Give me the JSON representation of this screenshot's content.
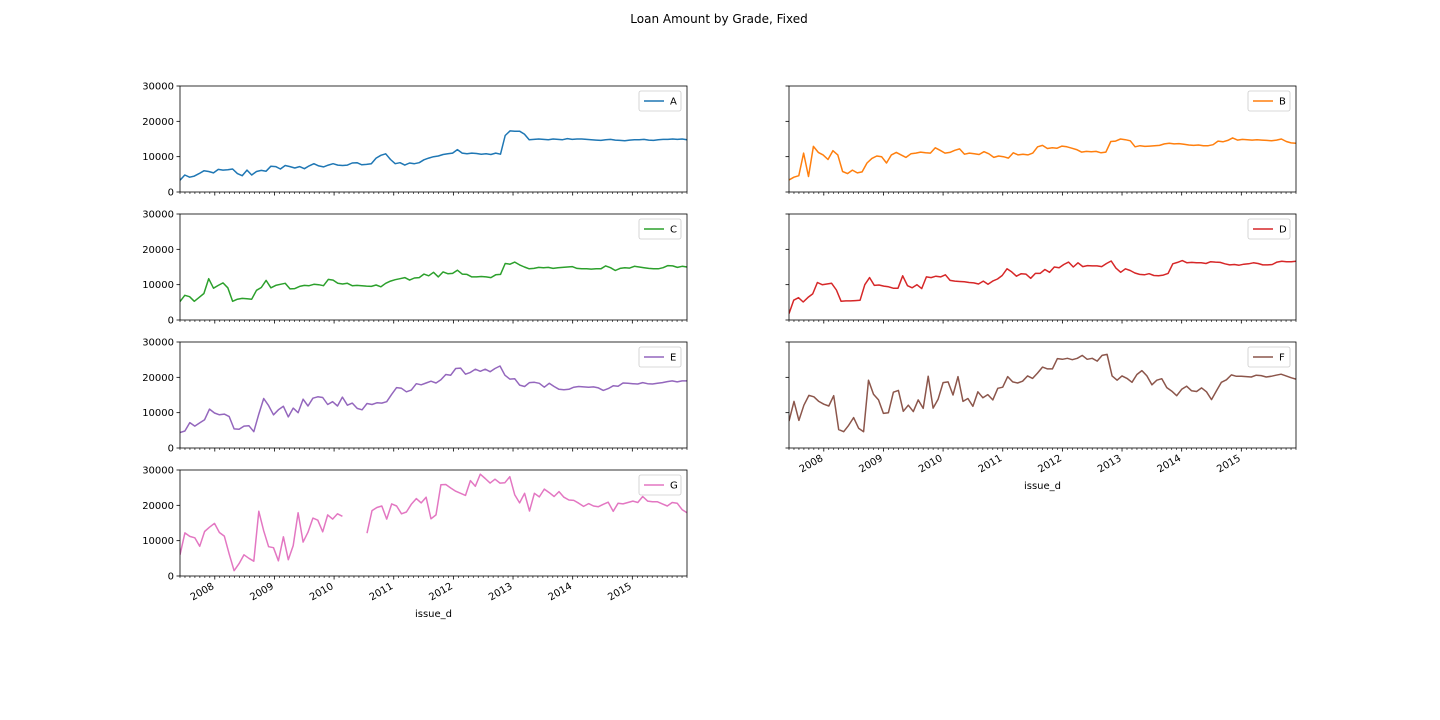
{
  "chart_data": {
    "type": "line",
    "title": "Loan Amount by Grade, Fixed",
    "xlabel": "issue_d",
    "year_ticks": [
      "2008",
      "2009",
      "2010",
      "2011",
      "2012",
      "2013",
      "2014",
      "2015"
    ],
    "y_ticks": [
      "0",
      "10000",
      "20000",
      "30000"
    ],
    "ylim": [
      0,
      30000
    ],
    "x_start": "2007-06",
    "x_end": "2015-12",
    "sharey": true,
    "legend": "top-right",
    "grid": false,
    "series": [
      {
        "name": "A",
        "color": "#1f77b4",
        "values": [
          3300,
          4800,
          4200,
          4500,
          5200,
          6000,
          5800,
          5400,
          6400,
          6200,
          6300,
          6500,
          5200,
          4600,
          6200,
          4800,
          5800,
          6100,
          5900,
          7300,
          7200,
          6500,
          7500,
          7200,
          6800,
          7200,
          6600,
          7400,
          8000,
          7400,
          7100,
          7600,
          8000,
          7600,
          7500,
          7600,
          8200,
          8300,
          7700,
          7800,
          8000,
          9600,
          10400,
          10800,
          9200,
          8000,
          8300,
          7600,
          8200,
          8000,
          8300,
          9100,
          9600,
          10000,
          10200,
          10600,
          10800,
          11000,
          12000,
          11000,
          10800,
          11000,
          10900,
          10700,
          10800,
          10600,
          11000,
          10700,
          16000,
          17300,
          17200,
          17200,
          16400,
          14800,
          14900,
          15000,
          14900,
          14800,
          15000,
          14900,
          14800,
          15100,
          14900,
          15000,
          15000,
          14900,
          14800,
          14700,
          14600,
          14800,
          14900,
          14700,
          14600,
          14500,
          14700,
          14800,
          14800,
          14900,
          14700,
          14600,
          14800,
          14900,
          14900,
          15000,
          14900,
          15000,
          14800
        ]
      },
      {
        "name": "B",
        "color": "#ff7f0e",
        "values": [
          3400,
          4200,
          4600,
          11000,
          4400,
          12900,
          11200,
          10500,
          9200,
          11700,
          10500,
          5800,
          5200,
          6200,
          5400,
          5700,
          8200,
          9500,
          10200,
          10000,
          8200,
          10500,
          11200,
          10500,
          9800,
          10800,
          11000,
          11300,
          11100,
          11000,
          12500,
          11800,
          11000,
          11200,
          11800,
          12200,
          10700,
          11000,
          10800,
          10600,
          11400,
          10800,
          9800,
          10200,
          10000,
          9600,
          11100,
          10500,
          10700,
          10500,
          11000,
          12800,
          13200,
          12300,
          12500,
          12400,
          13000,
          12800,
          12400,
          12000,
          11300,
          11500,
          11400,
          11500,
          11100,
          11300,
          14300,
          14400,
          15000,
          14800,
          14500,
          12800,
          13100,
          12900,
          13000,
          13100,
          13200,
          13600,
          13800,
          13600,
          13700,
          13500,
          13300,
          13200,
          13300,
          13100,
          13100,
          13400,
          14400,
          14200,
          14600,
          15300,
          14700,
          14900,
          14800,
          14700,
          14800,
          14700,
          14600,
          14500,
          14700,
          15000,
          14300,
          13900,
          13800
        ]
      },
      {
        "name": "C",
        "color": "#2ca02c",
        "values": [
          5200,
          7000,
          6600,
          5300,
          6400,
          7500,
          11700,
          9000,
          9800,
          10500,
          9100,
          5300,
          5900,
          6100,
          6000,
          5900,
          8400,
          9200,
          11200,
          9100,
          9800,
          10100,
          10400,
          8800,
          8900,
          9500,
          9800,
          9700,
          10100,
          10000,
          9700,
          11500,
          11300,
          10400,
          10200,
          10400,
          9700,
          9800,
          9700,
          9600,
          9500,
          9900,
          9400,
          10400,
          11000,
          11400,
          11700,
          12000,
          11300,
          11900,
          12000,
          13000,
          12500,
          13500,
          12200,
          13600,
          13100,
          13200,
          14100,
          13000,
          12900,
          12200,
          12200,
          12300,
          12200,
          12000,
          12800,
          12900,
          16000,
          15800,
          16400,
          15600,
          15000,
          14500,
          14600,
          14900,
          14800,
          14900,
          14600,
          14800,
          14900,
          15000,
          15100,
          14600,
          14500,
          14500,
          14400,
          14500,
          14500,
          15300,
          14800,
          14000,
          14600,
          14800,
          14700,
          15200,
          15000,
          14800,
          14600,
          14500,
          14500,
          14800,
          15400,
          15300,
          14900,
          15200,
          15000
        ]
      },
      {
        "name": "D",
        "color": "#d62728",
        "values": [
          1800,
          5600,
          6300,
          5100,
          6400,
          7400,
          10600,
          10000,
          10200,
          10400,
          8500,
          5300,
          5400,
          5400,
          5500,
          5600,
          10000,
          12000,
          9800,
          9900,
          9600,
          9400,
          9000,
          9000,
          12500,
          9700,
          9100,
          10000,
          8900,
          12200,
          12000,
          12400,
          12200,
          12800,
          11200,
          11000,
          10900,
          10800,
          10600,
          10500,
          10200,
          11000,
          10100,
          11000,
          11600,
          12600,
          14500,
          13600,
          12400,
          13100,
          13000,
          11800,
          13200,
          13200,
          14300,
          13500,
          15000,
          14800,
          15700,
          16400,
          15000,
          16200,
          15100,
          15400,
          15300,
          15300,
          15100,
          16000,
          16700,
          14700,
          13500,
          14500,
          14000,
          13300,
          12900,
          12800,
          13100,
          12600,
          12500,
          12700,
          13200,
          15900,
          16300,
          16800,
          16200,
          16300,
          16200,
          16200,
          16000,
          16500,
          16400,
          16300,
          15900,
          15600,
          15700,
          15500,
          15800,
          15900,
          16200,
          16000,
          15600,
          15600,
          15700,
          16400,
          16600,
          16500,
          16500,
          16600
        ]
      },
      {
        "name": "E",
        "color": "#9467bd",
        "values": [
          4400,
          4800,
          7200,
          6200,
          7100,
          8000,
          11000,
          9900,
          9400,
          9600,
          8900,
          5400,
          5300,
          6200,
          6300,
          4600,
          9600,
          14000,
          12000,
          9400,
          10800,
          11800,
          8800,
          11300,
          10000,
          13800,
          11900,
          14100,
          14500,
          14300,
          12300,
          13100,
          11900,
          14400,
          12100,
          12700,
          11200,
          10800,
          12600,
          12300,
          12800,
          12700,
          13100,
          15200,
          17100,
          16900,
          15900,
          16400,
          18200,
          17900,
          18400,
          18900,
          18400,
          19300,
          20800,
          20600,
          22500,
          22600,
          20900,
          21400,
          22300,
          21700,
          22300,
          21600,
          22500,
          23200,
          20600,
          19500,
          19600,
          17800,
          17400,
          18500,
          18600,
          18300,
          17200,
          18300,
          17400,
          16600,
          16500,
          16600,
          17200,
          17400,
          17300,
          17200,
          17300,
          17000,
          16300,
          16800,
          17600,
          17500,
          18400,
          18300,
          18200,
          18100,
          18500,
          18200,
          18100,
          18300,
          18500,
          18800,
          19000,
          18700,
          19000,
          19000
        ]
      },
      {
        "name": "F",
        "color": "#8c564b",
        "values": [
          7600,
          13200,
          7800,
          12100,
          14900,
          14500,
          13200,
          12400,
          11900,
          14800,
          5200,
          4600,
          6400,
          8600,
          5600,
          4600,
          19200,
          15200,
          13600,
          9800,
          10000,
          15800,
          16300,
          10400,
          12100,
          10300,
          13600,
          11200,
          20300,
          11300,
          13800,
          18500,
          18700,
          15000,
          20200,
          13200,
          14000,
          11800,
          15900,
          14200,
          15100,
          13600,
          16900,
          17200,
          20200,
          18700,
          18400,
          18900,
          20400,
          19700,
          21200,
          22900,
          22400,
          22400,
          25300,
          25100,
          25400,
          25000,
          25400,
          26200,
          25100,
          25400,
          24600,
          26200,
          26500,
          20400,
          19200,
          20400,
          19700,
          18600,
          20800,
          21900,
          20400,
          17900,
          19200,
          19600,
          17100,
          16100,
          14800,
          16600,
          17500,
          16200,
          16000,
          17000,
          15900,
          13700,
          16200,
          18600,
          19300,
          20700,
          20300,
          20300,
          20200,
          20100,
          20600,
          20500,
          20100,
          20300,
          20600,
          20900,
          20400,
          19900,
          19500
        ]
      },
      {
        "name": "G",
        "color": "#e377c2",
        "values": [
          6000,
          12200,
          11200,
          10800,
          8400,
          12600,
          13800,
          14900,
          12300,
          11300,
          6200,
          1500,
          3500,
          6000,
          5000,
          4200,
          18300,
          12800,
          8300,
          8000,
          4300,
          11100,
          4600,
          8600,
          17900,
          9600,
          12400,
          16400,
          15800,
          12500,
          17300,
          16100,
          17600,
          16900,
          null,
          null,
          null,
          null,
          12100,
          18500,
          19400,
          19800,
          16100,
          20400,
          19800,
          17600,
          18100,
          20300,
          21900,
          20700,
          22300,
          16200,
          17300,
          25800,
          25900,
          24900,
          24000,
          23400,
          22800,
          27000,
          25400,
          28800,
          27600,
          26300,
          27400,
          26300,
          26400,
          28100,
          23000,
          20700,
          23400,
          18400,
          23400,
          22400,
          24600,
          23600,
          22500,
          23900,
          22300,
          21500,
          21400,
          20600,
          19700,
          20500,
          19800,
          19600,
          20300,
          20900,
          18300,
          20600,
          20400,
          20800,
          21200,
          20800,
          22500,
          21200,
          21000,
          21000,
          20400,
          19800,
          20800,
          20600,
          18800,
          17900
        ]
      }
    ]
  }
}
